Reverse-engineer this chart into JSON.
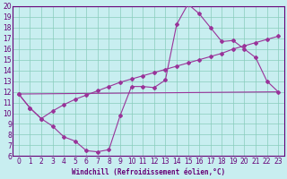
{
  "x_range": [
    -0.5,
    23.5
  ],
  "y_range": [
    6,
    20
  ],
  "background_color": "#c8eef0",
  "grid_color": "#88ccbb",
  "line_color": "#993399",
  "spine_color": "#660077",
  "xlabel": "Windchill (Refroidissement éolien,°C)",
  "line1_x": [
    0,
    1,
    2,
    3,
    4,
    5,
    6,
    7,
    8,
    9,
    10,
    11,
    12,
    13,
    14,
    15,
    16,
    17,
    18,
    19,
    20,
    21,
    22,
    23
  ],
  "line1_y": [
    11.8,
    10.5,
    9.5,
    8.8,
    7.8,
    7.4,
    6.5,
    6.4,
    6.6,
    9.8,
    12.5,
    12.5,
    12.4,
    13.1,
    18.3,
    20.2,
    19.3,
    18.0,
    16.7,
    16.8,
    16.0,
    15.2,
    13.0,
    12.0
  ],
  "line2_x": [
    0,
    1,
    2,
    3,
    4,
    5,
    6,
    7,
    8,
    9,
    10,
    11,
    12,
    13,
    14,
    15,
    16,
    17,
    18,
    19,
    20,
    21,
    22,
    23
  ],
  "line2_y": [
    11.8,
    10.5,
    9.5,
    10.2,
    10.8,
    11.3,
    11.7,
    12.1,
    12.5,
    12.9,
    13.2,
    13.5,
    13.8,
    14.1,
    14.4,
    14.7,
    15.0,
    15.3,
    15.6,
    16.0,
    16.3,
    16.6,
    16.9,
    17.2
  ],
  "line3_x": [
    0,
    23
  ],
  "line3_y": [
    11.8,
    12.0
  ],
  "tick_fontsize": 5.5,
  "label_fontsize": 5.5
}
